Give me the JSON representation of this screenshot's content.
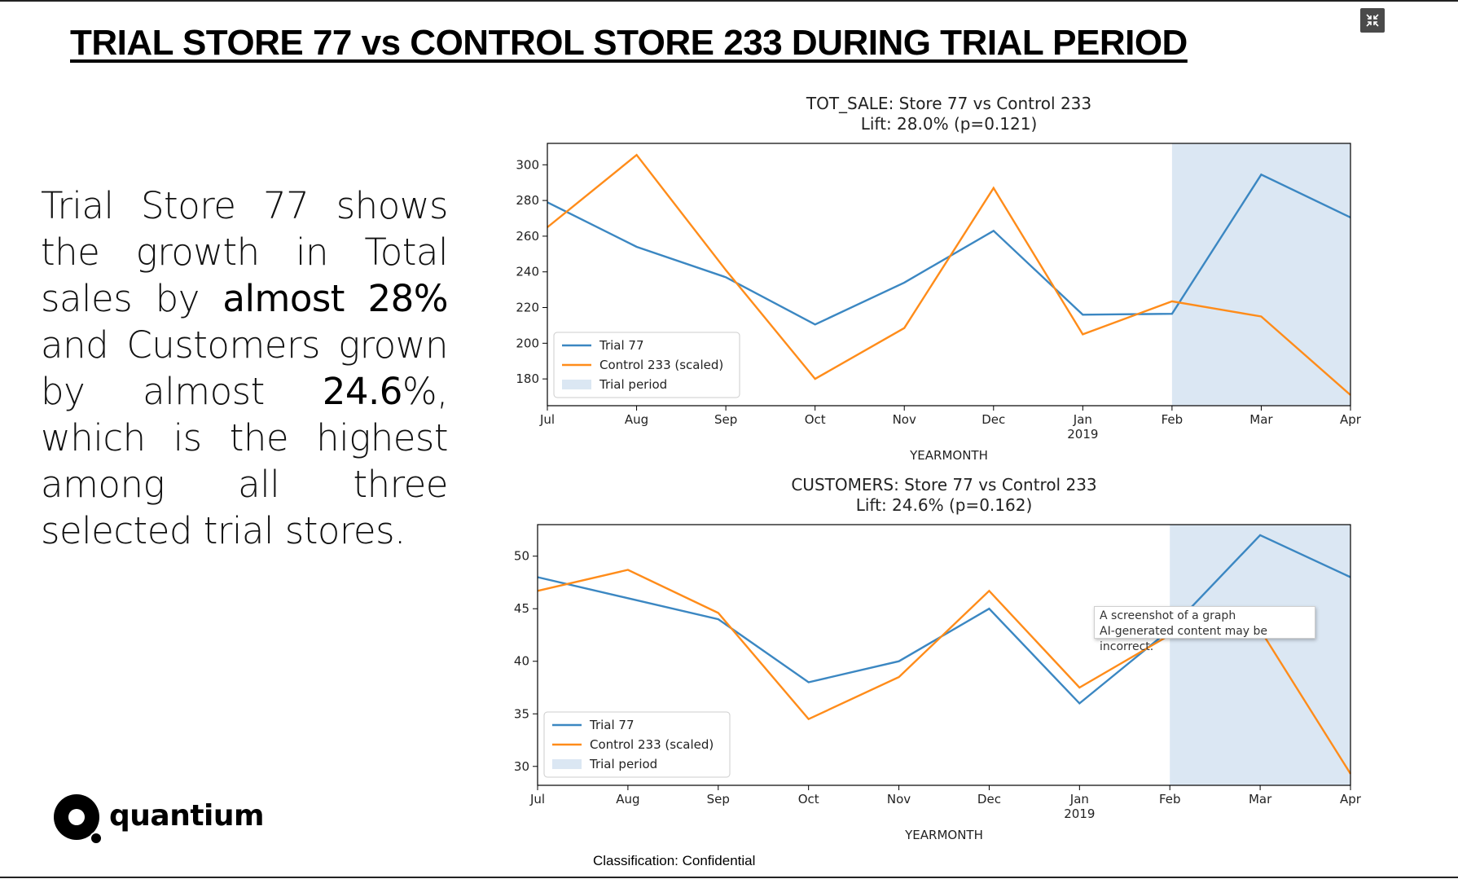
{
  "slide": {
    "title": "TRIAL STORE 77 vs CONTROL STORE 233 DURING TRIAL PERIOD",
    "body": {
      "part1": "Trial Store 77 shows the growth in Total sales by ",
      "highlight1": "almost 28%",
      "part2": " and Customers grown by almost ",
      "highlight2": "24.6",
      "part3": "%, which is the highest among all three selected trial stores."
    },
    "logo_text": "quantium",
    "footer": "Classification: Confidential",
    "tooltip": {
      "line1": "A screenshot of a graph",
      "line2": "AI-generated content may be incorrect."
    },
    "expand_icon": "collapse-arrows-icon"
  },
  "colors": {
    "trial": "#3b87c2",
    "control": "#ff8c1a",
    "trial_period": "#dbe7f3"
  },
  "chart_data": [
    {
      "type": "line",
      "title": "TOT_SALE: Store 77 vs Control 233",
      "subtitle": "Lift: 28.0% (p=0.121)",
      "xlabel": "YEARMONTH",
      "ylabel": "",
      "categories": [
        "Jul",
        "Aug",
        "Sep",
        "Oct",
        "Nov",
        "Dec",
        "Jan",
        "Feb",
        "Mar",
        "Apr"
      ],
      "year_label": {
        "category": "Jan",
        "text": "2019"
      },
      "yticks": [
        180,
        200,
        220,
        240,
        260,
        280,
        300
      ],
      "ylim": [
        165,
        312
      ],
      "series": [
        {
          "name": "Trial 77",
          "values": [
            279,
            254,
            237,
            210.5,
            234,
            263,
            216,
            216.5,
            294.5,
            270.5
          ]
        },
        {
          "name": "Control 233 (scaled)",
          "values": [
            265,
            305.5,
            241,
            180,
            208.5,
            287,
            205,
            223.5,
            215,
            171
          ]
        }
      ],
      "shaded": {
        "name": "Trial period",
        "from": "Feb",
        "to": "Apr"
      },
      "legend": "lower-left",
      "grid": false
    },
    {
      "type": "line",
      "title": "CUSTOMERS: Store 77 vs Control 233",
      "subtitle": "Lift: 24.6% (p=0.162)",
      "xlabel": "YEARMONTH",
      "ylabel": "",
      "categories": [
        "Jul",
        "Aug",
        "Sep",
        "Oct",
        "Nov",
        "Dec",
        "Jan",
        "Feb",
        "Mar",
        "Apr"
      ],
      "year_label": {
        "category": "Jan",
        "text": "2019"
      },
      "yticks": [
        30,
        35,
        40,
        45,
        50
      ],
      "ylim": [
        28.2,
        53
      ],
      "series": [
        {
          "name": "Trial 77",
          "values": [
            48,
            46,
            44,
            38,
            40,
            45,
            36,
            43,
            52,
            48
          ]
        },
        {
          "name": "Control 233 (scaled)",
          "values": [
            46.7,
            48.7,
            44.6,
            34.5,
            38.5,
            46.7,
            37.5,
            42.5,
            43,
            29.3
          ]
        }
      ],
      "shaded": {
        "name": "Trial period",
        "from": "Feb",
        "to": "Apr"
      },
      "legend": "lower-left",
      "grid": false
    }
  ]
}
